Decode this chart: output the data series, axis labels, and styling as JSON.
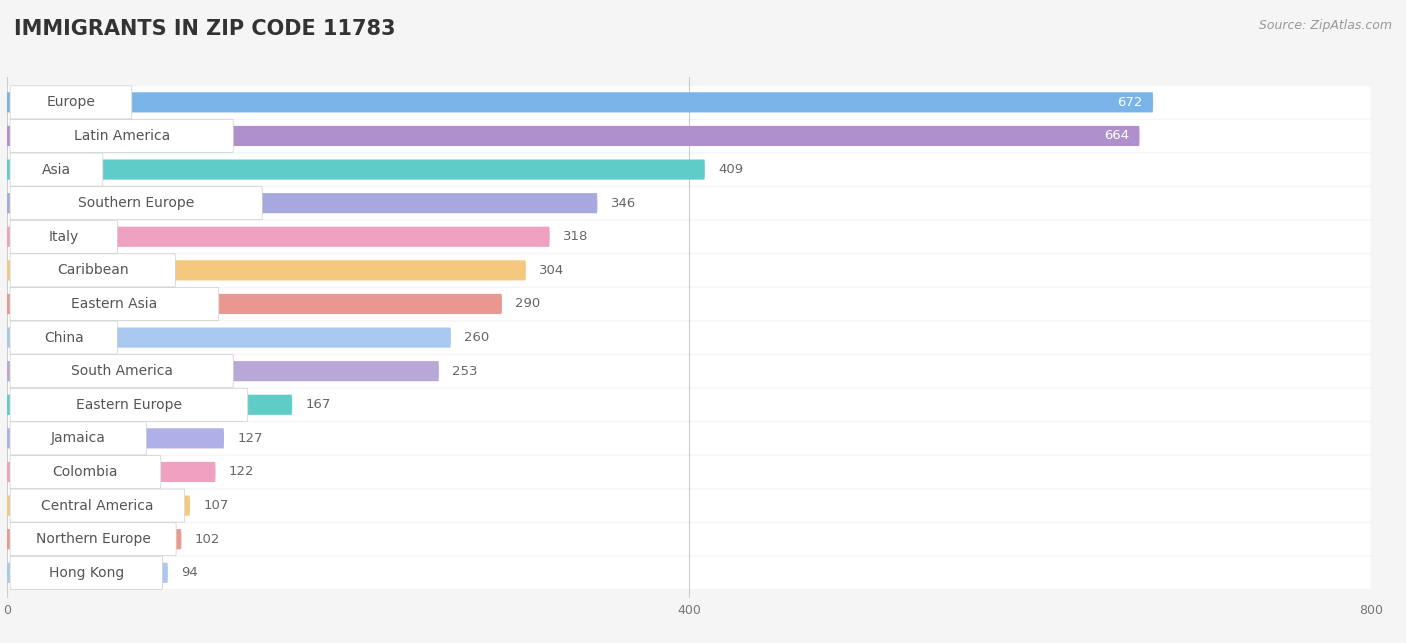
{
  "title": "IMMIGRANTS IN ZIP CODE 11783",
  "source": "Source: ZipAtlas.com",
  "categories": [
    "Europe",
    "Latin America",
    "Asia",
    "Southern Europe",
    "Italy",
    "Caribbean",
    "Eastern Asia",
    "China",
    "South America",
    "Eastern Europe",
    "Jamaica",
    "Colombia",
    "Central America",
    "Northern Europe",
    "Hong Kong"
  ],
  "values": [
    672,
    664,
    409,
    346,
    318,
    304,
    290,
    260,
    253,
    167,
    127,
    122,
    107,
    102,
    94
  ],
  "bar_colors": [
    "#7ab3e8",
    "#b090cc",
    "#60ccc8",
    "#a8a8e0",
    "#f0a0c0",
    "#f5c880",
    "#e89890",
    "#a8c8f0",
    "#b8a8d8",
    "#60ccc8",
    "#b0b0e8",
    "#f0a0c0",
    "#f5c880",
    "#e89890",
    "#a8c8f0"
  ],
  "xlim": [
    0,
    800
  ],
  "xticks": [
    0,
    400,
    800
  ],
  "background_color": "#f5f5f5",
  "bar_background": "#ffffff",
  "row_bg": "#f0f0f0",
  "title_fontsize": 15,
  "source_fontsize": 9,
  "label_fontsize": 10,
  "value_fontsize": 9.5
}
